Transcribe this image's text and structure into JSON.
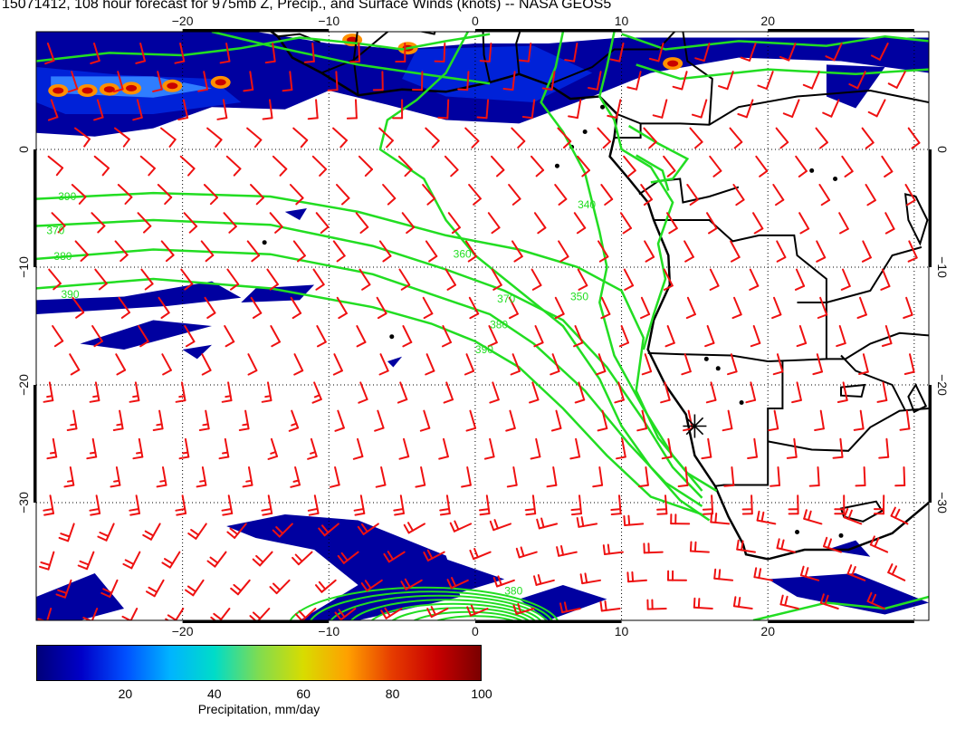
{
  "title": "15071412, 108 hour forecast for 975mb Z, Precip., and Surface Winds (knots) -- NASA GEOS5",
  "map": {
    "lon_range": [
      -30,
      31
    ],
    "lat_range": [
      -40,
      10
    ],
    "lon_ticks": [
      {
        "v": -20,
        "label": "−20"
      },
      {
        "v": -10,
        "label": "−10"
      },
      {
        "v": 0,
        "label": "0"
      },
      {
        "v": 10,
        "label": "10"
      },
      {
        "v": 20,
        "label": "20"
      }
    ],
    "lat_ticks": [
      {
        "v": 0,
        "label": "0"
      },
      {
        "v": -10,
        "label": "−10"
      },
      {
        "v": -20,
        "label": "−20"
      },
      {
        "v": -30,
        "label": "−30"
      }
    ],
    "contour_labels": [
      {
        "text": "390",
        "lon": -28.5,
        "lat": -4.3
      },
      {
        "text": "370",
        "lon": -29.3,
        "lat": -7.2
      },
      {
        "text": "380",
        "lon": -28.8,
        "lat": -9.4
      },
      {
        "text": "390",
        "lon": -28.3,
        "lat": -12.6
      },
      {
        "text": "360",
        "lon": -1.5,
        "lat": -9.2
      },
      {
        "text": "340",
        "lon": 7.0,
        "lat": -5.0
      },
      {
        "text": "370",
        "lon": 1.5,
        "lat": -13.0
      },
      {
        "text": "350",
        "lon": 6.5,
        "lat": -12.8
      },
      {
        "text": "380",
        "lon": 1.0,
        "lat": -15.2
      },
      {
        "text": "390",
        "lon": 0.0,
        "lat": -17.3
      },
      {
        "text": "380",
        "lon": 2.0,
        "lat": -37.8
      }
    ],
    "marker": {
      "lon": 15.0,
      "lat": -23.5
    },
    "colors": {
      "contour": "#22dd22",
      "barb": "#ee1111",
      "coast": "#000000",
      "grid": "#000000"
    }
  },
  "colorbar": {
    "title": "Precipitation, mm/day",
    "min": 0,
    "max": 100,
    "ticks": [
      20,
      40,
      60,
      80,
      100
    ],
    "colors": [
      "#00007a",
      "#0000c8",
      "#0050ff",
      "#00b4ff",
      "#00dcc8",
      "#80dc50",
      "#d8dc00",
      "#ffa000",
      "#e63c00",
      "#c80000",
      "#7a0000"
    ]
  }
}
